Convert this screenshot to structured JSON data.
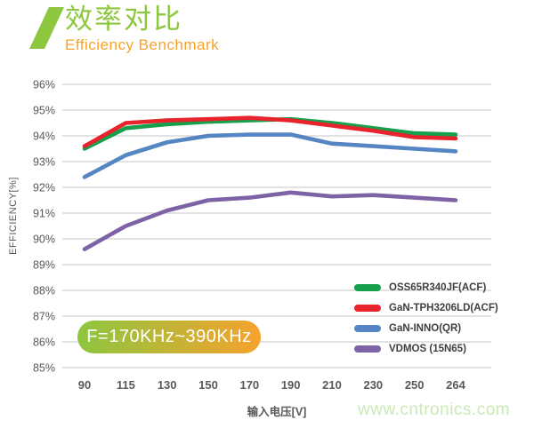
{
  "header": {
    "title": "效率对比",
    "subtitle": "Efficiency Benchmark"
  },
  "badge": {
    "label": "F=170KHz~390KHz"
  },
  "watermark": {
    "text": "www.cntronics.com"
  },
  "colors": {
    "header_green": "#8dc63f",
    "header_orange": "#f7a329",
    "badge_gradient_start": "#8dc63f",
    "badge_gradient_end": "#f6a22d",
    "gridline": "#d9d9d9",
    "tick_text": "#595959",
    "legend_text": "#3f3f3f",
    "watermark_green": "#cbe9b5"
  },
  "chart_data": {
    "type": "line",
    "title": "效率对比 / Efficiency Benchmark",
    "xlabel": "输入电压[V]",
    "ylabel": "EFFICIENCY[%]",
    "categories": [
      "90",
      "115",
      "130",
      "150",
      "170",
      "190",
      "210",
      "230",
      "250",
      "264"
    ],
    "y_tick_labels": [
      "96%",
      "95%",
      "94%",
      "93%",
      "92%",
      "91%",
      "90%",
      "89%",
      "88%",
      "87%",
      "86%",
      "85%"
    ],
    "y_tick_values": [
      96,
      95,
      94,
      93,
      92,
      91,
      90,
      89,
      88,
      87,
      86,
      85
    ],
    "ylim": [
      85,
      96
    ],
    "grid": "horizontal",
    "legend_position": "inside bottom-right",
    "annotation": "F=170KHz~390KHz",
    "series": [
      {
        "name": "OSS65R340JF(ACF)",
        "color": "#17a04b",
        "values": [
          93.5,
          94.3,
          94.45,
          94.55,
          94.6,
          94.65,
          94.5,
          94.3,
          94.1,
          94.05
        ]
      },
      {
        "name": "GaN-TPH3206LD(ACF)",
        "color": "#e8232b",
        "values": [
          93.6,
          94.5,
          94.6,
          94.65,
          94.7,
          94.6,
          94.4,
          94.2,
          93.95,
          93.9
        ]
      },
      {
        "name": "GaN-INNO(QR)",
        "color": "#5586c3",
        "values": [
          92.4,
          93.25,
          93.75,
          94.0,
          94.05,
          94.05,
          93.7,
          93.6,
          93.5,
          93.4
        ]
      },
      {
        "name": "VDMOS (15N65)",
        "color": "#7d63a6",
        "values": [
          89.6,
          90.5,
          91.1,
          91.5,
          91.6,
          91.8,
          91.65,
          91.7,
          91.6,
          91.5
        ]
      }
    ]
  }
}
